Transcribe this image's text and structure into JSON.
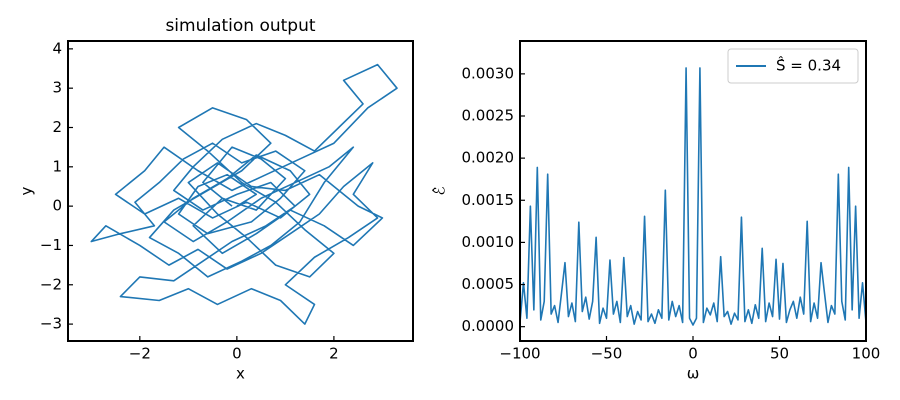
{
  "chart_data": [
    {
      "type": "line",
      "title": "simulation output",
      "x_label": "x",
      "y_label": "y",
      "xlim": [
        -3.48,
        3.63
      ],
      "ylim": [
        -3.43,
        4.2
      ],
      "xticks": [
        {
          "value": -2,
          "label": "−2"
        },
        0,
        2
      ],
      "yticks": [
        {
          "value": -3,
          "label": "−3"
        },
        {
          "value": -2,
          "label": "−2"
        },
        {
          "value": -1,
          "label": "−1"
        },
        0,
        1,
        2,
        3,
        4
      ],
      "x": [
        0,
        0.4,
        -0.2,
        -0.8,
        -1.2,
        -0.6,
        0.3,
        0.9,
        1.4,
        0.8,
        0.1,
        -0.5,
        -1.1,
        -1.6,
        -2.1,
        -1.7,
        -2.4,
        -3.0,
        -2.7,
        -2.0,
        -1.4,
        -0.8,
        -0.2,
        0.5,
        1.1,
        1.7,
        2.2,
        2.8,
        2.4,
        2.9,
        2.3,
        1.6,
        1.0,
        1.6,
        1.4,
        0.9,
        0.3,
        -0.4,
        -1.0,
        -1.6,
        -2.4,
        -2.0,
        -1.3,
        -0.7,
        -0.1,
        0.6,
        1.2,
        0.7,
        0,
        -0.7,
        -1.3,
        -0.9,
        -0.3,
        0.4,
        1.0,
        1.6,
        2.1,
        2.6,
        2.2,
        2.9,
        3.3,
        2.7,
        2.0,
        1.3,
        0.6,
        -0.1,
        -0.8,
        -1.5,
        -1.9,
        -2.5,
        -1.9,
        -1.2,
        -0.5,
        0.2,
        0.9,
        1.5,
        1.1,
        0.4,
        -0.2,
        -0.9,
        -1.5,
        -0.9,
        -0.2,
        0.5,
        1.2,
        1.9,
        2.4,
        1.8,
        1.3,
        0.7,
        0.1,
        -0.6,
        -1.2,
        -1.8,
        -1.3,
        -0.6,
        0.1,
        0.7,
        0.2,
        -0.5,
        -1.2,
        -0.6,
        0.1,
        0.8,
        1.4,
        2.0,
        1.5,
        0.8,
        0.2,
        -0.4,
        -1.0,
        -0.4,
        0.3,
        1.0,
        1.7,
        2.5,
        3.0,
        2.4,
        1.8,
        1.1,
        0.4,
        -0.3,
        -0.9,
        -0.3,
        0.4,
        1.0,
        0.5,
        -0.1,
        -0.7,
        -0.1
      ],
      "series": [
        {
          "color": "#1f77b4",
          "values": [
            0,
            0.3,
            0.8,
            0.5,
            -0.2,
            -0.7,
            -0.4,
            0.2,
            0.9,
            1.4,
            1.1,
            1.6,
            1.2,
            0.6,
            0.1,
            -0.5,
            -0.7,
            -0.9,
            -0.5,
            -1.0,
            -1.5,
            -1.1,
            -1.6,
            -1.2,
            -0.7,
            -0.2,
            0.5,
            1.1,
            0.3,
            -0.3,
            -0.8,
            -1.3,
            -2.0,
            -2.5,
            -3.0,
            -2.4,
            -2.1,
            -2.5,
            -2.1,
            -2.4,
            -2.3,
            -1.8,
            -1.9,
            -1.4,
            -0.9,
            -0.5,
            0,
            0.6,
            0.3,
            -0.1,
            0.4,
            1.0,
            1.7,
            2.1,
            1.8,
            1.4,
            2.0,
            2.6,
            3.2,
            3.6,
            3.0,
            2.5,
            1.6,
            1.2,
            0.8,
            0.4,
            0.9,
            1.5,
            0.9,
            0.3,
            -0.2,
            0.2,
            -0.3,
            0.1,
            -0.3,
            0.3,
            0.9,
            1.3,
            0.7,
            0.2,
            -0.4,
            -0.9,
            -0.4,
            0.2,
            0.6,
            1.0,
            1.5,
            0.6,
            -0.4,
            -1.0,
            -1.4,
            -1.8,
            -1.2,
            -0.8,
            -0.1,
            0.4,
            0.9,
            1.6,
            2.2,
            2.5,
            2.0,
            1.4,
            0.6,
            0.1,
            -0.6,
            -1.2,
            -1.8,
            -1.5,
            -0.8,
            -0.2,
            0.6,
            1.1,
            0.5,
            0.4,
            0.8,
            0,
            -0.3,
            -1.0,
            -0.5,
            -0.1,
            -0.7,
            -1.2,
            -0.5,
            0.2,
            -0.1,
            0.7,
            1.2,
            1.5,
            0.6,
            0
          ]
        }
      ]
    },
    {
      "type": "line",
      "x_label": "ω",
      "y_label": "ℰ̂",
      "legend": "upper right",
      "xlim": [
        -100,
        100
      ],
      "ylim": [
        -0.00017,
        0.00339
      ],
      "xticks": [
        {
          "value": -100,
          "label": "−100"
        },
        {
          "value": -50,
          "label": "−50"
        },
        0,
        50,
        100
      ],
      "yticks": [
        {
          "value": 0,
          "label": "0.0000"
        },
        {
          "value": 0.0005,
          "label": "0.0005"
        },
        {
          "value": 0.001,
          "label": "0.0010"
        },
        {
          "value": 0.0015,
          "label": "0.0015"
        },
        {
          "value": 0.002,
          "label": "0.0020"
        },
        {
          "value": 0.0025,
          "label": "0.0025"
        },
        {
          "value": 0.003,
          "label": "0.0030"
        }
      ],
      "x": [
        -100,
        -98,
        -96,
        -94,
        -92,
        -90,
        -88,
        -86,
        -84,
        -82,
        -80,
        -78,
        -76,
        -74,
        -72,
        -70,
        -68,
        -66,
        -64,
        -62,
        -60,
        -58,
        -56,
        -54,
        -52,
        -50,
        -48,
        -46,
        -44,
        -42,
        -40,
        -38,
        -36,
        -34,
        -32,
        -30,
        -28,
        -26,
        -24,
        -22,
        -20,
        -18,
        -16,
        -14,
        -12,
        -10,
        -8,
        -6,
        -4,
        -2,
        0,
        2,
        4,
        6,
        8,
        10,
        12,
        14,
        16,
        18,
        20,
        22,
        24,
        26,
        28,
        30,
        32,
        34,
        36,
        38,
        40,
        42,
        44,
        46,
        48,
        50,
        52,
        54,
        56,
        58,
        60,
        62,
        64,
        66,
        68,
        70,
        72,
        74,
        76,
        78,
        80,
        82,
        84,
        86,
        88,
        90,
        92,
        94,
        96,
        98,
        100
      ],
      "series": [
        {
          "name": "Ŝ̂ = 0.34",
          "color": "#1f77b4",
          "values": [
            5e-05,
            0.00052,
            0.0001,
            0.00143,
            0.0002,
            0.00189,
            8e-05,
            0.0003,
            0.00181,
            0.00015,
            0.00025,
            5e-05,
            0.0004,
            0.00076,
            0.00012,
            0.00028,
            6e-05,
            0.00124,
            0.00018,
            0.00035,
            9e-05,
            0.0003,
            0.00106,
            4e-05,
            0.00022,
            0.0001,
            0.00079,
            0.00015,
            0.0003,
            5e-05,
            0.00082,
            0.00012,
            0.00025,
            3e-05,
            0.00018,
            8e-05,
            0.00131,
            6e-05,
            0.00015,
            4e-05,
            0.0002,
            0.0001,
            0.00162,
            8e-05,
            0.0003,
            0.00012,
            0.00025,
            5e-05,
            0.00307,
            0.0001,
            2e-05,
            0.0001,
            0.00307,
            5e-05,
            0.00022,
            0.00014,
            0.00028,
            6e-05,
            0.00083,
            0.00012,
            0.00018,
            3e-05,
            0.00016,
            8e-05,
            0.0013,
            6e-05,
            0.0002,
            4e-05,
            0.00026,
            0.0001,
            0.00093,
            6e-05,
            0.00028,
            0.00012,
            0.0008,
            9e-05,
            0.00075,
            5e-05,
            0.0002,
            0.0003,
            0.0001,
            0.00035,
            0.00015,
            0.00125,
            6e-05,
            0.00028,
            0.0001,
            0.00076,
            0.0004,
            5e-05,
            0.00025,
            0.00015,
            0.00181,
            0.0003,
            8e-05,
            0.00189,
            0.0002,
            0.00143,
            0.0001,
            0.00052,
            5e-05
          ]
        }
      ]
    }
  ]
}
